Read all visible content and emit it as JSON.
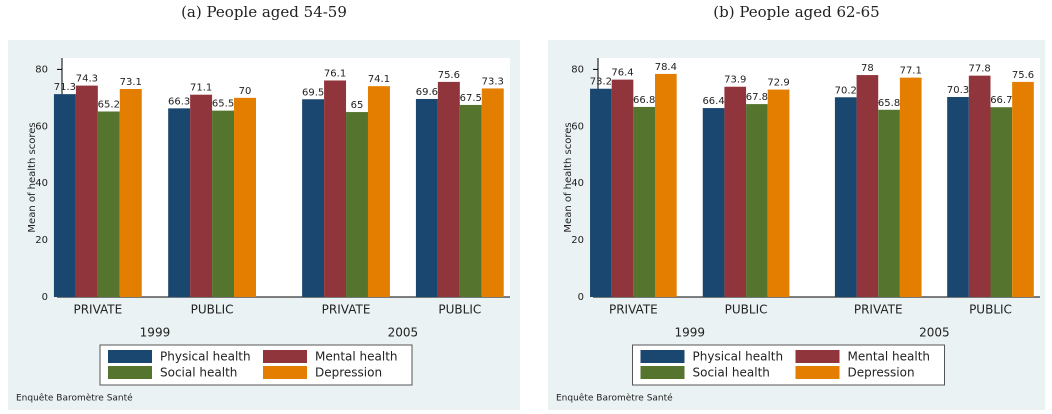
{
  "chart_data": [
    {
      "type": "bar",
      "title": "(a) People aged 54-59",
      "ylabel": "Mean of health scores",
      "categories": [
        "PRIVATE",
        "PUBLIC",
        "PRIVATE",
        "PUBLIC"
      ],
      "category_groups": [
        "1999",
        "2005"
      ],
      "series": [
        {
          "name": "Physical health",
          "color": "#1a476f",
          "values": [
            71.3,
            66.3,
            69.5,
            69.6
          ]
        },
        {
          "name": "Mental health",
          "color": "#90353b",
          "values": [
            74.3,
            71.1,
            76.1,
            75.6
          ]
        },
        {
          "name": "Social health",
          "color": "#55752f",
          "values": [
            65.2,
            65.5,
            65,
            67.5
          ]
        },
        {
          "name": "Depression",
          "color": "#e37e00",
          "values": [
            73.1,
            70,
            74.1,
            73.3
          ]
        }
      ],
      "ylim": [
        0,
        84
      ],
      "yticks": [
        0,
        20,
        40,
        60,
        80
      ],
      "grid": false,
      "note": "Enquête Baromètre Santé"
    },
    {
      "type": "bar",
      "title": "(b) People aged 62-65",
      "ylabel": "Mean of health scores",
      "categories": [
        "PRIVATE",
        "PUBLIC",
        "PRIVATE",
        "PUBLIC"
      ],
      "category_groups": [
        "1999",
        "2005"
      ],
      "series": [
        {
          "name": "Physical health",
          "color": "#1a476f",
          "values": [
            73.2,
            66.4,
            70.2,
            70.3
          ]
        },
        {
          "name": "Mental health",
          "color": "#90353b",
          "values": [
            76.4,
            73.9,
            78,
            77.8
          ]
        },
        {
          "name": "Social health",
          "color": "#55752f",
          "values": [
            66.8,
            67.8,
            65.8,
            66.7
          ]
        },
        {
          "name": "Depression",
          "color": "#e37e00",
          "values": [
            78.4,
            72.9,
            77.1,
            75.6
          ]
        }
      ],
      "ylim": [
        0,
        84
      ],
      "yticks": [
        0,
        20,
        40,
        60,
        80
      ],
      "grid": false,
      "note": "Enquête Baromètre Santé"
    }
  ]
}
